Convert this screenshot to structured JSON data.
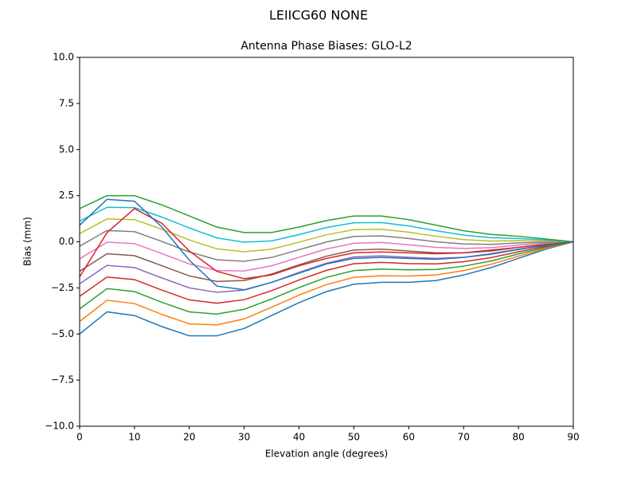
{
  "chart_data": {
    "type": "line",
    "suptitle": "LEIICG60        NONE",
    "title": "Antenna Phase Biases: GLO-L2",
    "xlabel": "Elevation angle (degrees)",
    "ylabel": "Bias (mm)",
    "x": [
      0,
      5,
      10,
      15,
      20,
      25,
      30,
      35,
      40,
      45,
      50,
      55,
      60,
      65,
      70,
      75,
      80,
      85,
      90
    ],
    "xlim": [
      0,
      90
    ],
    "xticks": [
      0,
      10,
      20,
      30,
      40,
      50,
      60,
      70,
      80,
      90
    ],
    "ylim": [
      -10,
      10
    ],
    "yticks": [
      {
        "value": -10,
        "label": "−10.0"
      },
      {
        "value": -7.5,
        "label": "−7.5"
      },
      {
        "value": -5,
        "label": "−5.0"
      },
      {
        "value": -2.5,
        "label": "−2.5"
      },
      {
        "value": 0,
        "label": "0.0"
      },
      2.5,
      {
        "value": 5,
        "label": "5.0"
      },
      7.5,
      {
        "value": 10,
        "label": "10.0"
      }
    ],
    "series": [
      {
        "color": "#1f77b4",
        "values": [
          -5,
          -3.8,
          -4,
          -4.6,
          -5.1,
          -5.1,
          -4.7,
          -4,
          -3.3,
          -2.7,
          -2.3,
          -2.2,
          -2.2,
          -2.1,
          -1.8,
          -1.4,
          -0.9,
          -0.4,
          0
        ]
      },
      {
        "color": "#ff7f0e",
        "values": [
          -4.32,
          -3.17,
          -3.35,
          -3.94,
          -4.45,
          -4.51,
          -4.18,
          -3.55,
          -2.89,
          -2.32,
          -1.93,
          -1.84,
          -1.86,
          -1.8,
          -1.56,
          -1.22,
          -0.78,
          -0.35,
          0
        ]
      },
      {
        "color": "#2ca02c",
        "values": [
          -3.64,
          -2.54,
          -2.7,
          -3.28,
          -3.8,
          -3.92,
          -3.66,
          -3.1,
          -2.48,
          -1.93,
          -1.56,
          -1.48,
          -1.52,
          -1.5,
          -1.32,
          -1.04,
          -0.66,
          -0.29,
          0
        ]
      },
      {
        "color": "#d62728",
        "values": [
          -2.96,
          -1.91,
          -2.05,
          -2.62,
          -3.15,
          -3.33,
          -3.14,
          -2.65,
          -2.07,
          -1.55,
          -1.19,
          -1.12,
          -1.18,
          -1.2,
          -1.08,
          -0.86,
          -0.54,
          -0.24,
          0
        ]
      },
      {
        "color": "#9467bd",
        "values": [
          -2.28,
          -1.28,
          -1.4,
          -1.96,
          -2.5,
          -2.74,
          -2.62,
          -2.2,
          -1.66,
          -1.16,
          -0.82,
          -0.76,
          -0.84,
          -0.9,
          -0.84,
          -0.68,
          -0.42,
          -0.18,
          0
        ]
      },
      {
        "color": "#8c564b",
        "values": [
          -1.6,
          -0.65,
          -0.75,
          -1.3,
          -1.85,
          -2.15,
          -2.1,
          -1.75,
          -1.25,
          -0.78,
          -0.45,
          -0.4,
          -0.5,
          -0.6,
          -0.6,
          -0.5,
          -0.3,
          -0.13,
          0
        ]
      },
      {
        "color": "#e377c2",
        "values": [
          -0.92,
          -0.02,
          -0.1,
          -0.64,
          -1.2,
          -1.56,
          -1.58,
          -1.3,
          -0.84,
          -0.39,
          -0.08,
          -0.04,
          -0.16,
          -0.3,
          -0.36,
          -0.32,
          -0.18,
          -0.07,
          0
        ]
      },
      {
        "color": "#7f7f7f",
        "values": [
          -0.24,
          0.61,
          0.55,
          0.02,
          -0.55,
          -0.97,
          -1.06,
          -0.85,
          -0.43,
          -0.01,
          0.29,
          0.32,
          0.18,
          0,
          -0.12,
          -0.14,
          -0.06,
          -0.02,
          0
        ]
      },
      {
        "color": "#bcbd22",
        "values": [
          0.44,
          1.24,
          1.2,
          0.68,
          0.1,
          -0.38,
          -0.54,
          -0.4,
          -0.02,
          0.38,
          0.66,
          0.68,
          0.52,
          0.3,
          0.12,
          0.04,
          0.06,
          0.04,
          0
        ]
      },
      {
        "color": "#17becf",
        "values": [
          1.12,
          1.87,
          1.85,
          1.34,
          0.75,
          0.21,
          -0.02,
          0.05,
          0.39,
          0.77,
          1.03,
          1.04,
          0.86,
          0.6,
          0.36,
          0.22,
          0.18,
          0.1,
          0
        ]
      },
      {
        "color": "#2ca02c",
        "values": [
          1.8,
          2.5,
          2.5,
          2,
          1.4,
          0.8,
          0.5,
          0.5,
          0.8,
          1.15,
          1.4,
          1.4,
          1.2,
          0.9,
          0.6,
          0.4,
          0.3,
          0.15,
          0
        ]
      },
      {
        "color": "#d62728",
        "values": [
          -1.9,
          0.5,
          1.8,
          1,
          -0.5,
          -1.6,
          -2,
          -1.8,
          -1.3,
          -0.9,
          -0.6,
          -0.55,
          -0.6,
          -0.65,
          -0.6,
          -0.45,
          -0.3,
          -0.15,
          0
        ]
      },
      {
        "color": "#1f77b4",
        "values": [
          0.9,
          2.3,
          2.2,
          0.8,
          -1,
          -2.4,
          -2.6,
          -2.2,
          -1.7,
          -1.2,
          -0.9,
          -0.85,
          -0.9,
          -0.95,
          -0.85,
          -0.65,
          -0.4,
          -0.2,
          0
        ]
      }
    ]
  }
}
